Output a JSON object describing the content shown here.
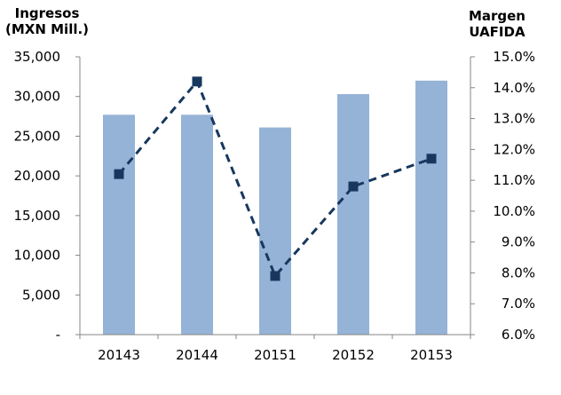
{
  "chart_data": {
    "type": "bar",
    "categories": [
      "20143",
      "20144",
      "20151",
      "20152",
      "20153"
    ],
    "series": [
      {
        "type": "bar",
        "axis": "left",
        "color": "#95b3d7",
        "values": [
          27700,
          27700,
          26100,
          30300,
          32000
        ]
      },
      {
        "type": "line",
        "axis": "right",
        "color": "#17375e",
        "style": "dashed",
        "marker": "square",
        "values": [
          11.2,
          14.2,
          7.9,
          10.8,
          11.7
        ]
      }
    ],
    "y_left": {
      "title_line1": "Ingresos",
      "title_line2": "(MXN Mill.)",
      "ylim": [
        0,
        35000
      ],
      "ticks": [
        0,
        5000,
        10000,
        15000,
        20000,
        25000,
        30000,
        35000
      ],
      "tick_labels": [
        "-",
        "5,000",
        "10,000",
        "15,000",
        "20,000",
        "25,000",
        "30,000",
        "35,000"
      ]
    },
    "y_right": {
      "title_line1": "Margen",
      "title_line2": "UAFIDA",
      "ylim": [
        6,
        15
      ],
      "ticks": [
        6,
        7,
        8,
        9,
        10,
        11,
        12,
        13,
        14,
        15
      ],
      "tick_labels": [
        "6.0%",
        "7.0%",
        "8.0%",
        "9.0%",
        "10.0%",
        "11.0%",
        "12.0%",
        "13.0%",
        "14.0%",
        "15.0%"
      ]
    },
    "grid": false,
    "legend": "none"
  }
}
